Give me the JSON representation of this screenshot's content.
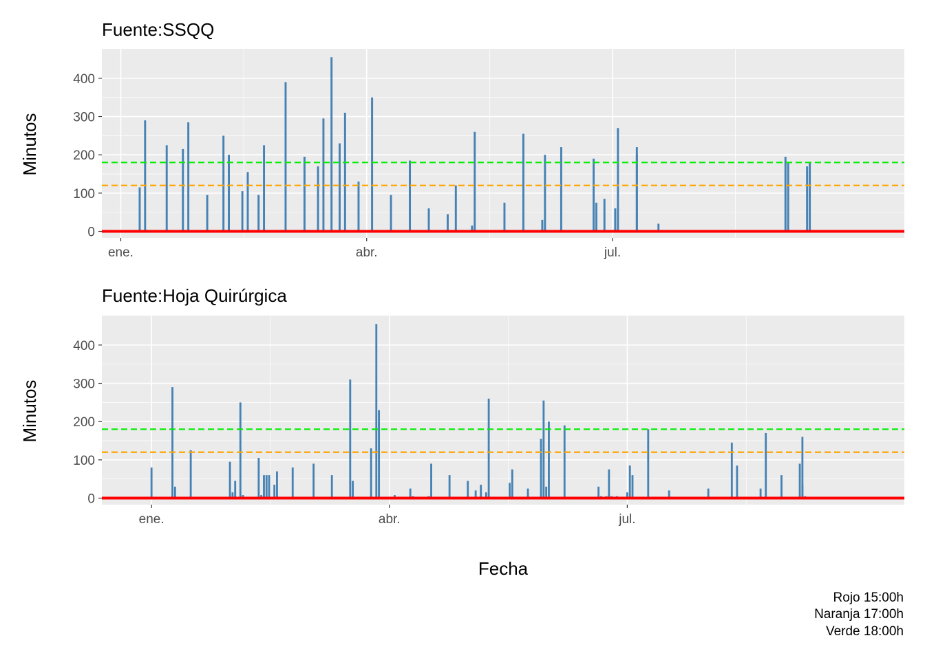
{
  "chart_data": [
    {
      "type": "bar",
      "title": "Fuente:SSQQ",
      "xlabel": "",
      "ylabel": "Minutos",
      "x_axis": "date",
      "xlim": [
        "2019-12-25",
        "2020-10-17"
      ],
      "ylim": [
        -17,
        477
      ],
      "yticks": [
        0,
        100,
        200,
        300,
        400
      ],
      "xticks": [
        {
          "date": "2020-01-01",
          "label": "ene."
        },
        {
          "date": "2020-04-01",
          "label": "abr."
        },
        {
          "date": "2020-07-01",
          "label": "jul."
        }
      ],
      "reference_lines": [
        {
          "value": 0,
          "color": "#ff0000",
          "style": "solid"
        },
        {
          "value": 120,
          "color": "#ffa500",
          "style": "dashed"
        },
        {
          "value": 180,
          "color": "#00ee00",
          "style": "dashed"
        }
      ],
      "bar_color": "#4682b4",
      "grid": true,
      "x": [
        "2020-01-08",
        "2020-01-10",
        "2020-01-18",
        "2020-01-24",
        "2020-01-26",
        "2020-02-02",
        "2020-02-08",
        "2020-02-10",
        "2020-02-15",
        "2020-02-17",
        "2020-02-21",
        "2020-02-23",
        "2020-03-02",
        "2020-03-09",
        "2020-03-14",
        "2020-03-16",
        "2020-03-19",
        "2020-03-22",
        "2020-03-24",
        "2020-03-29",
        "2020-04-03",
        "2020-04-10",
        "2020-04-17",
        "2020-04-24",
        "2020-05-01",
        "2020-05-04",
        "2020-05-10",
        "2020-05-11",
        "2020-05-22",
        "2020-05-29",
        "2020-06-05",
        "2020-06-06",
        "2020-06-12",
        "2020-06-24",
        "2020-06-25",
        "2020-06-28",
        "2020-07-02",
        "2020-07-03",
        "2020-07-10",
        "2020-07-10",
        "2020-07-10",
        "2020-07-18",
        "2020-09-03",
        "2020-09-04",
        "2020-09-11",
        "2020-09-12"
      ],
      "values": [
        115,
        290,
        225,
        215,
        285,
        95,
        250,
        200,
        105,
        155,
        95,
        225,
        390,
        195,
        170,
        295,
        455,
        230,
        310,
        130,
        350,
        95,
        185,
        60,
        45,
        120,
        15,
        260,
        75,
        255,
        30,
        200,
        220,
        190,
        75,
        85,
        60,
        270,
        220,
        200,
        0,
        20,
        195,
        180,
        170,
        180
      ]
    },
    {
      "type": "bar",
      "title": "Fuente:Hoja Quirúrgica",
      "xlabel": "Fecha",
      "ylabel": "Minutos",
      "x_axis": "date",
      "xlim": [
        "2019-12-13",
        "2020-10-15"
      ],
      "ylim": [
        -17,
        477
      ],
      "yticks": [
        0,
        100,
        200,
        300,
        400
      ],
      "xticks": [
        {
          "date": "2020-01-01",
          "label": "ene."
        },
        {
          "date": "2020-04-01",
          "label": "abr."
        },
        {
          "date": "2020-07-01",
          "label": "jul."
        }
      ],
      "reference_lines": [
        {
          "value": 0,
          "color": "#ff0000",
          "style": "solid"
        },
        {
          "value": 120,
          "color": "#ffa500",
          "style": "dashed"
        },
        {
          "value": 180,
          "color": "#00ee00",
          "style": "dashed"
        }
      ],
      "bar_color": "#4682b4",
      "grid": true,
      "x": [
        "2020-01-01",
        "2020-01-09",
        "2020-01-10",
        "2020-01-16",
        "2020-01-31",
        "2020-02-01",
        "2020-02-02",
        "2020-02-04",
        "2020-02-05",
        "2020-02-11",
        "2020-02-12",
        "2020-02-13",
        "2020-02-14",
        "2020-02-15",
        "2020-02-17",
        "2020-02-18",
        "2020-03-27",
        "2020-03-28",
        "2020-02-24",
        "2020-03-03",
        "2020-03-10",
        "2020-03-17",
        "2020-03-18",
        "2020-03-25",
        "2020-04-03",
        "2020-04-09",
        "2020-04-10",
        "2020-04-16",
        "2020-04-17",
        "2020-04-24",
        "2020-05-01",
        "2020-05-04",
        "2020-05-06",
        "2020-05-08",
        "2020-05-09",
        "2020-05-17",
        "2020-05-18",
        "2020-05-24",
        "2020-05-29",
        "2020-05-30",
        "2020-05-31",
        "2020-06-01",
        "2020-06-07",
        "2020-06-20",
        "2020-06-21",
        "2020-06-23",
        "2020-06-24",
        "2020-06-25",
        "2020-06-27",
        "2020-07-01",
        "2020-07-02",
        "2020-07-03",
        "2020-07-09",
        "2020-07-17",
        "2020-08-01",
        "2020-08-10",
        "2020-08-12",
        "2020-08-21",
        "2020-08-23",
        "2020-08-29",
        "2020-09-05",
        "2020-09-06",
        "2020-09-06",
        "2020-09-07"
      ],
      "values": [
        80,
        290,
        30,
        125,
        95,
        15,
        45,
        250,
        8,
        105,
        8,
        60,
        60,
        60,
        35,
        70,
        455,
        230,
        80,
        90,
        60,
        310,
        45,
        130,
        8,
        25,
        5,
        5,
        90,
        60,
        45,
        20,
        35,
        15,
        260,
        40,
        75,
        25,
        155,
        255,
        30,
        200,
        190,
        30,
        5,
        5,
        75,
        5,
        5,
        15,
        85,
        60,
        180,
        20,
        25,
        145,
        85,
        25,
        170,
        60,
        90,
        35,
        160,
        5
      ]
    }
  ],
  "caption": [
    "Rojo 15:00h",
    "Naranja 17:00h",
    "Verde 18:00h"
  ]
}
